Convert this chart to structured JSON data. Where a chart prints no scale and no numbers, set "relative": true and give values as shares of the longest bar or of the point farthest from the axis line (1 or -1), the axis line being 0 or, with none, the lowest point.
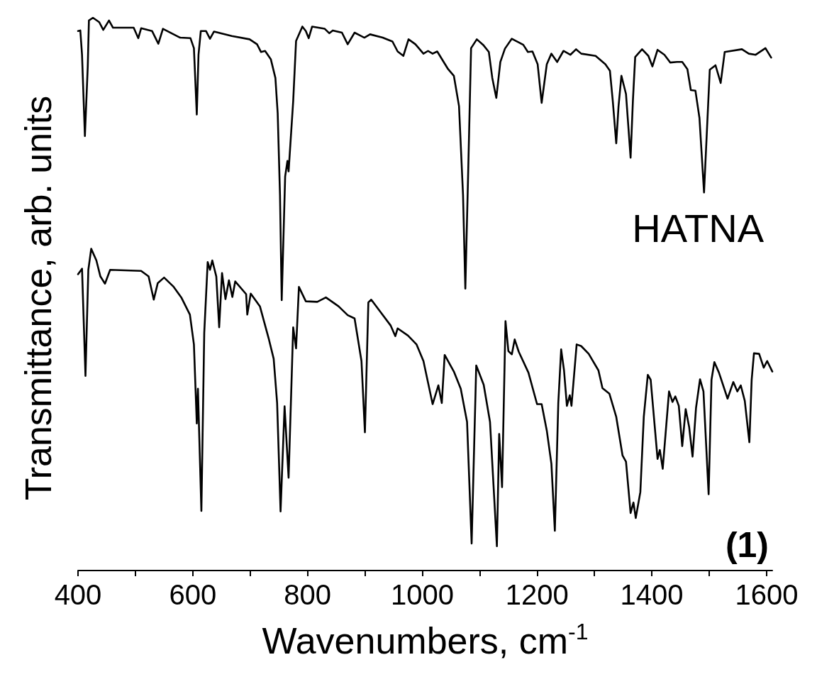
{
  "chart_data": {
    "type": "line",
    "relative": true,
    "xlabel": "Wavenumbers, cm$^{-1}$",
    "ylabel": "Transmittance, arb. units",
    "xlim": [
      400,
      1610
    ],
    "xticks": [
      400,
      {
        "value": 500,
        "label": null
      },
      600,
      {
        "value": 700,
        "label": null
      },
      800,
      {
        "value": 900,
        "label": null
      },
      1000,
      {
        "value": 1100,
        "label": null
      },
      1200,
      {
        "value": 1300,
        "label": null
      },
      1400,
      {
        "value": 1500,
        "label": null
      },
      1600
    ],
    "grid": false,
    "legend": false,
    "marker": "none",
    "line_style": "solid",
    "series": [
      {
        "name": "HATNA",
        "color": "#000000",
        "x": [
          400,
          404,
          407,
          412,
          417,
          419,
          426,
          437,
          444,
          454,
          461,
          497,
          505,
          510,
          529,
          540,
          548,
          578,
          596,
          602,
          607,
          610,
          614,
          623,
          630,
          637,
          668,
          699,
          712,
          719,
          726,
          736,
          744,
          748,
          752,
          755,
          761,
          765,
          767,
          775,
          780,
          791,
          797,
          802,
          808,
          830,
          838,
          844,
          860,
          870,
          882,
          899,
          909,
          931,
          948,
          957,
          967,
          976,
          988,
          1002,
          1010,
          1018,
          1026,
          1045,
          1055,
          1064,
          1071,
          1075,
          1080,
          1085,
          1095,
          1106,
          1116,
          1122,
          1129,
          1136,
          1144,
          1156,
          1176,
          1184,
          1192,
          1201,
          1208,
          1217,
          1225,
          1235,
          1246,
          1258,
          1268,
          1277,
          1302,
          1319,
          1327,
          1332,
          1338,
          1342,
          1347,
          1355,
          1363,
          1367,
          1371,
          1383,
          1394,
          1401,
          1410,
          1422,
          1432,
          1444,
          1453,
          1462,
          1468,
          1476,
          1483,
          1491,
          1501,
          1511,
          1520,
          1527,
          1557,
          1569,
          1581,
          1598,
          1608
        ],
        "values": [
          0.976,
          0.977,
          0.933,
          0.786,
          0.912,
          0.995,
          1,
          0.992,
          0.978,
          0.995,
          0.982,
          0.982,
          0.963,
          0.981,
          0.976,
          0.953,
          0.98,
          0.964,
          0.963,
          0.945,
          0.825,
          0.933,
          0.976,
          0.976,
          0.962,
          0.975,
          0.967,
          0.961,
          0.952,
          0.938,
          0.94,
          0.925,
          0.891,
          0.827,
          0.679,
          0.489,
          0.713,
          0.741,
          0.722,
          0.849,
          0.958,
          0.984,
          0.976,
          0.963,
          0.984,
          0.98,
          0.972,
          0.977,
          0.973,
          0.952,
          0.973,
          0.964,
          0.97,
          0.964,
          0.957,
          0.939,
          0.931,
          0.961,
          0.952,
          0.935,
          0.94,
          0.935,
          0.939,
          0.907,
          0.895,
          0.84,
          0.679,
          0.51,
          0.722,
          0.945,
          0.961,
          0.951,
          0.938,
          0.891,
          0.855,
          0.92,
          0.944,
          0.962,
          0.951,
          0.938,
          0.939,
          0.916,
          0.846,
          0.916,
          0.935,
          0.92,
          0.94,
          0.933,
          0.943,
          0.935,
          0.931,
          0.916,
          0.904,
          0.849,
          0.773,
          0.84,
          0.895,
          0.862,
          0.747,
          0.849,
          0.929,
          0.943,
          0.931,
          0.912,
          0.942,
          0.933,
          0.919,
          0.92,
          0.92,
          0.907,
          0.869,
          0.868,
          0.819,
          0.684,
          0.906,
          0.914,
          0.882,
          0.938,
          0.943,
          0.935,
          0.933,
          0.945,
          0.928
        ]
      },
      {
        "name": "(1)",
        "color": "#000000",
        "x": [
          400,
          407,
          413,
          418,
          423,
          432,
          439,
          447,
          456,
          510,
          523,
          532,
          539,
          550,
          566,
          580,
          595,
          602,
          607,
          609,
          615,
          620,
          626,
          630,
          634,
          641,
          646,
          651,
          657,
          663,
          669,
          674,
          693,
          695,
          701,
          717,
          732,
          741,
          747,
          753,
          760,
          767,
          775,
          780,
          785,
          797,
          817,
          832,
          854,
          870,
          882,
          894,
          900,
          906,
          911,
          927,
          945,
          953,
          957,
          975,
          990,
          1002,
          1018,
          1028,
          1034,
          1039,
          1055,
          1067,
          1078,
          1086,
          1094,
          1100,
          1107,
          1118,
          1130,
          1134,
          1139,
          1145,
          1150,
          1156,
          1161,
          1168,
          1185,
          1200,
          1208,
          1217,
          1225,
          1231,
          1237,
          1242,
          1247,
          1252,
          1257,
          1260,
          1269,
          1277,
          1290,
          1307,
          1314,
          1326,
          1338,
          1349,
          1355,
          1363,
          1368,
          1372,
          1380,
          1386,
          1393,
          1398,
          1410,
          1414,
          1419,
          1430,
          1436,
          1441,
          1447,
          1453,
          1459,
          1465,
          1471,
          1477,
          1484,
          1490,
          1499,
          1504,
          1509,
          1517,
          1532,
          1542,
          1549,
          1555,
          1562,
          1570,
          1574,
          1578,
          1587,
          1595,
          1601,
          1610
        ],
        "values": [
          0.536,
          0.546,
          0.352,
          0.544,
          0.582,
          0.561,
          0.532,
          0.519,
          0.544,
          0.542,
          0.532,
          0.49,
          0.52,
          0.53,
          0.514,
          0.494,
          0.463,
          0.409,
          0.266,
          0.329,
          0.108,
          0.43,
          0.558,
          0.544,
          0.561,
          0.532,
          0.44,
          0.538,
          0.491,
          0.525,
          0.495,
          0.523,
          0.5,
          0.463,
          0.501,
          0.478,
          0.421,
          0.383,
          0.303,
          0.107,
          0.297,
          0.168,
          0.44,
          0.402,
          0.513,
          0.487,
          0.486,
          0.494,
          0.478,
          0.462,
          0.456,
          0.379,
          0.25,
          0.485,
          0.49,
          0.468,
          0.443,
          0.424,
          0.438,
          0.425,
          0.409,
          0.379,
          0.301,
          0.335,
          0.303,
          0.39,
          0.36,
          0.329,
          0.269,
          0.049,
          0.371,
          0.355,
          0.336,
          0.269,
          0.044,
          0.247,
          0.151,
          0.451,
          0.397,
          0.391,
          0.418,
          0.396,
          0.358,
          0.301,
          0.301,
          0.253,
          0.193,
          0.072,
          0.303,
          0.4,
          0.362,
          0.298,
          0.317,
          0.298,
          0.409,
          0.406,
          0.392,
          0.362,
          0.33,
          0.32,
          0.278,
          0.208,
          0.197,
          0.104,
          0.123,
          0.095,
          0.142,
          0.278,
          0.354,
          0.345,
          0.202,
          0.218,
          0.184,
          0.324,
          0.305,
          0.315,
          0.298,
          0.225,
          0.292,
          0.26,
          0.206,
          0.294,
          0.346,
          0.324,
          0.138,
          0.345,
          0.377,
          0.358,
          0.311,
          0.341,
          0.324,
          0.335,
          0.307,
          0.232,
          0.345,
          0.393,
          0.392,
          0.367,
          0.379,
          0.36
        ]
      }
    ]
  }
}
